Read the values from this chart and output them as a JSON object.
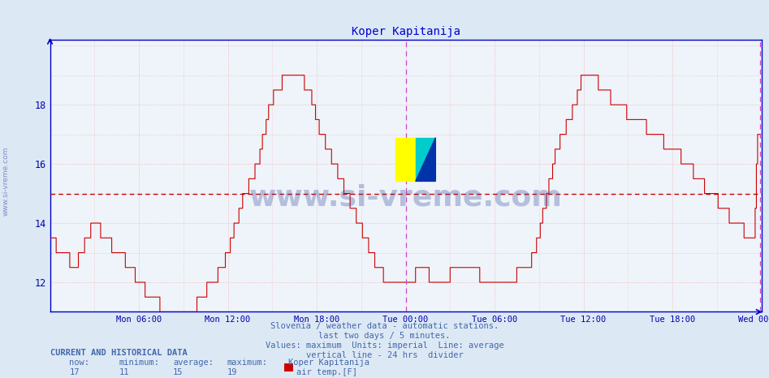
{
  "title": "Koper Kapitanija",
  "title_color": "#0000cc",
  "bg_color": "#dce9f5",
  "plot_bg_color": "#eef4fa",
  "grid_color": "#f0b0b0",
  "line_color": "#cc0000",
  "avg_line_color": "#cc0000",
  "avg_line_value": 15,
  "divider_color": "#cc44cc",
  "axis_color": "#0000cc",
  "tick_color": "#0000aa",
  "ylim": [
    11.0,
    20.2
  ],
  "yticks": [
    12,
    14,
    16,
    18
  ],
  "footer_line1": "Slovenia / weather data - automatic stations.",
  "footer_line2": "last two days / 5 minutes.",
  "footer_line3": "Values: maximum  Units: imperial  Line: average",
  "footer_line4": "vertical line - 24 hrs  divider",
  "footer_color": "#4466aa",
  "current_label": "CURRENT AND HISTORICAL DATA",
  "now_val": "17",
  "min_val": "11",
  "avg_val": "15",
  "max_val": "19",
  "station_name": "Koper Kapitanija",
  "series_label": "air temp.[F]",
  "legend_color": "#cc0000",
  "watermark_text": "www.si-vreme.com",
  "watermark_color": "#334499",
  "watermark_alpha": 0.3,
  "n_points": 576,
  "x_tick_positions": [
    72,
    144,
    216,
    288,
    360,
    432,
    504,
    576
  ],
  "x_tick_labels": [
    "Mon 06:00",
    "Mon 12:00",
    "Mon 18:00",
    "Tue 00:00",
    "Tue 06:00",
    "Tue 12:00",
    "Tue 18:00",
    "Wed 00:00"
  ],
  "divider_x": 288,
  "left_sidebar_text": "www.si-vreme.com"
}
